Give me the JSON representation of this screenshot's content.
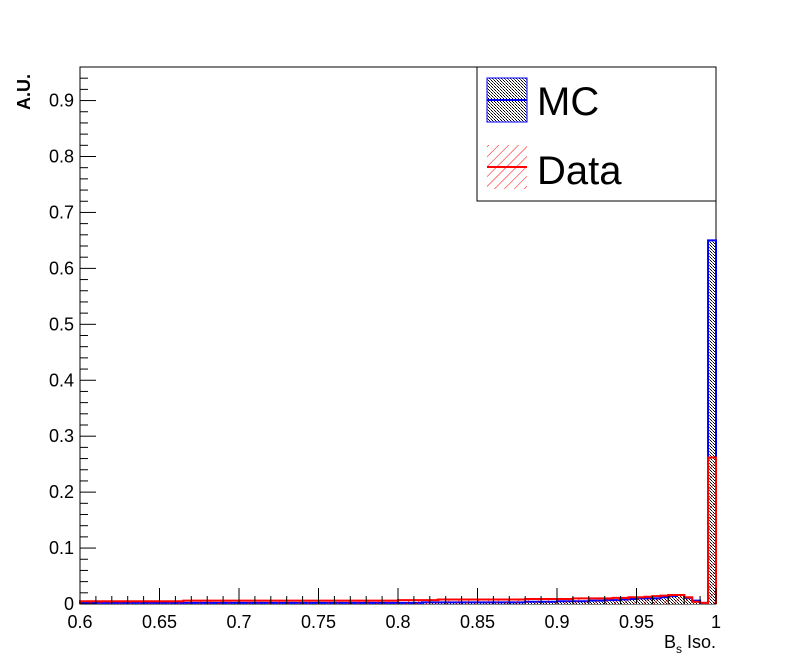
{
  "chart_data": {
    "type": "histogram",
    "xlabel_main": "B",
    "xlabel_sub": "s",
    "xlabel_rest": " Iso.",
    "ylabel": "A.U.",
    "xlim": [
      0.6,
      1.0
    ],
    "ylim": [
      0,
      0.96
    ],
    "bin_width": 0.005,
    "x_ticks": [
      "0.6",
      "0.65",
      "0.7",
      "0.75",
      "0.8",
      "0.85",
      "0.9",
      "0.95",
      "1"
    ],
    "y_ticks": [
      "0",
      "0.1",
      "0.2",
      "0.3",
      "0.4",
      "0.5",
      "0.6",
      "0.7",
      "0.8",
      "0.9"
    ],
    "legend": [
      "MC",
      "Data"
    ],
    "series": [
      {
        "name": "MC",
        "color": "#0000ff",
        "fill": "hatch-dense",
        "x_start": 0.6,
        "values": [
          0.002,
          0.002,
          0.002,
          0.002,
          0.002,
          0.002,
          0.002,
          0.002,
          0.002,
          0.002,
          0.002,
          0.002,
          0.002,
          0.002,
          0.002,
          0.002,
          0.002,
          0.002,
          0.002,
          0.002,
          0.002,
          0.002,
          0.002,
          0.002,
          0.002,
          0.002,
          0.002,
          0.002,
          0.002,
          0.002,
          0.002,
          0.002,
          0.002,
          0.002,
          0.002,
          0.002,
          0.002,
          0.002,
          0.002,
          0.002,
          0.002,
          0.002,
          0.002,
          0.003,
          0.003,
          0.003,
          0.003,
          0.003,
          0.003,
          0.003,
          0.003,
          0.003,
          0.003,
          0.003,
          0.003,
          0.003,
          0.004,
          0.004,
          0.004,
          0.004,
          0.005,
          0.005,
          0.005,
          0.005,
          0.006,
          0.006,
          0.007,
          0.007,
          0.008,
          0.009,
          0.01,
          0.01,
          0.01,
          0.012,
          0.014,
          0.016,
          0.011,
          0.006,
          0.002,
          0.65
        ]
      },
      {
        "name": "Data",
        "color": "#ff0000",
        "fill": "hatch-diagonal",
        "x_start": 0.6,
        "values": [
          0.005,
          0.005,
          0.005,
          0.005,
          0.005,
          0.005,
          0.005,
          0.005,
          0.005,
          0.005,
          0.005,
          0.005,
          0.005,
          0.006,
          0.006,
          0.006,
          0.006,
          0.006,
          0.006,
          0.006,
          0.006,
          0.006,
          0.006,
          0.006,
          0.006,
          0.006,
          0.006,
          0.006,
          0.006,
          0.006,
          0.006,
          0.006,
          0.006,
          0.006,
          0.006,
          0.006,
          0.006,
          0.006,
          0.006,
          0.006,
          0.007,
          0.007,
          0.007,
          0.007,
          0.007,
          0.008,
          0.008,
          0.008,
          0.008,
          0.008,
          0.008,
          0.008,
          0.008,
          0.008,
          0.008,
          0.008,
          0.009,
          0.009,
          0.009,
          0.009,
          0.009,
          0.009,
          0.01,
          0.01,
          0.01,
          0.01,
          0.01,
          0.011,
          0.011,
          0.012,
          0.012,
          0.013,
          0.014,
          0.015,
          0.016,
          0.016,
          0.012,
          0.004,
          0.002,
          0.262
        ]
      }
    ],
    "grid": false,
    "legend_position": "top-right"
  }
}
